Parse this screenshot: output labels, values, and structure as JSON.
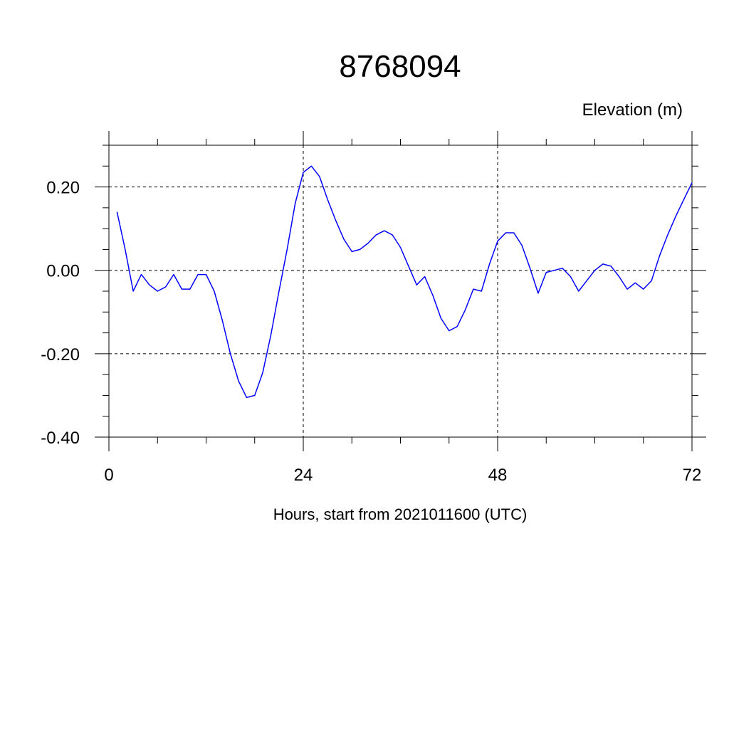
{
  "chart_data": {
    "type": "line",
    "title": "8768094",
    "unit_label": "Elevation (m)",
    "xlabel": "Hours, start from 2021011600 (UTC)",
    "ylabel": "",
    "xlim": [
      0,
      72
    ],
    "ylim": [
      -0.4,
      0.3
    ],
    "x_ticks": [
      0,
      24,
      48,
      72
    ],
    "x_tick_labels": [
      "0",
      "24",
      "48",
      "72"
    ],
    "x_minor_step": 6,
    "y_ticks": [
      0.2,
      0.0,
      -0.2,
      -0.4
    ],
    "y_tick_labels": [
      "0.20",
      "0.00",
      "-0.20",
      "-0.40"
    ],
    "y_minor_step": 0.05,
    "grid": true,
    "series": [
      {
        "color": "#0000ff",
        "x": [
          1,
          2,
          3,
          4,
          5,
          6,
          7,
          8,
          9,
          10,
          11,
          12,
          13,
          14,
          15,
          16,
          17,
          18,
          19,
          20,
          21,
          22,
          23,
          24,
          25,
          26,
          27,
          28,
          29,
          30,
          31,
          32,
          33,
          34,
          35,
          36,
          37,
          38,
          39,
          40,
          41,
          42,
          43,
          44,
          45,
          46,
          47,
          48,
          49,
          50,
          51,
          52,
          53,
          54,
          55,
          56,
          57,
          58,
          59,
          60,
          61,
          62,
          63,
          64,
          65,
          66,
          67,
          68,
          69,
          70,
          71,
          72
        ],
        "values": [
          0.14,
          0.05,
          -0.05,
          -0.01,
          -0.035,
          -0.05,
          -0.04,
          -0.01,
          -0.045,
          -0.045,
          -0.01,
          -0.01,
          -0.05,
          -0.12,
          -0.2,
          -0.265,
          -0.305,
          -0.3,
          -0.245,
          -0.155,
          -0.05,
          0.05,
          0.16,
          0.235,
          0.25,
          0.225,
          0.17,
          0.12,
          0.075,
          0.045,
          0.05,
          0.065,
          0.085,
          0.095,
          0.085,
          0.055,
          0.01,
          -0.035,
          -0.015,
          -0.06,
          -0.115,
          -0.145,
          -0.135,
          -0.095,
          -0.045,
          -0.05,
          0.015,
          0.07,
          0.09,
          0.09,
          0.06,
          0.005,
          -0.055,
          -0.005,
          0.0,
          0.005,
          -0.015,
          -0.05,
          -0.025,
          0.0,
          0.015,
          0.01,
          -0.015,
          -0.045,
          -0.03,
          -0.045,
          -0.025,
          0.035,
          0.085,
          0.13,
          0.17,
          0.21
        ]
      }
    ]
  }
}
